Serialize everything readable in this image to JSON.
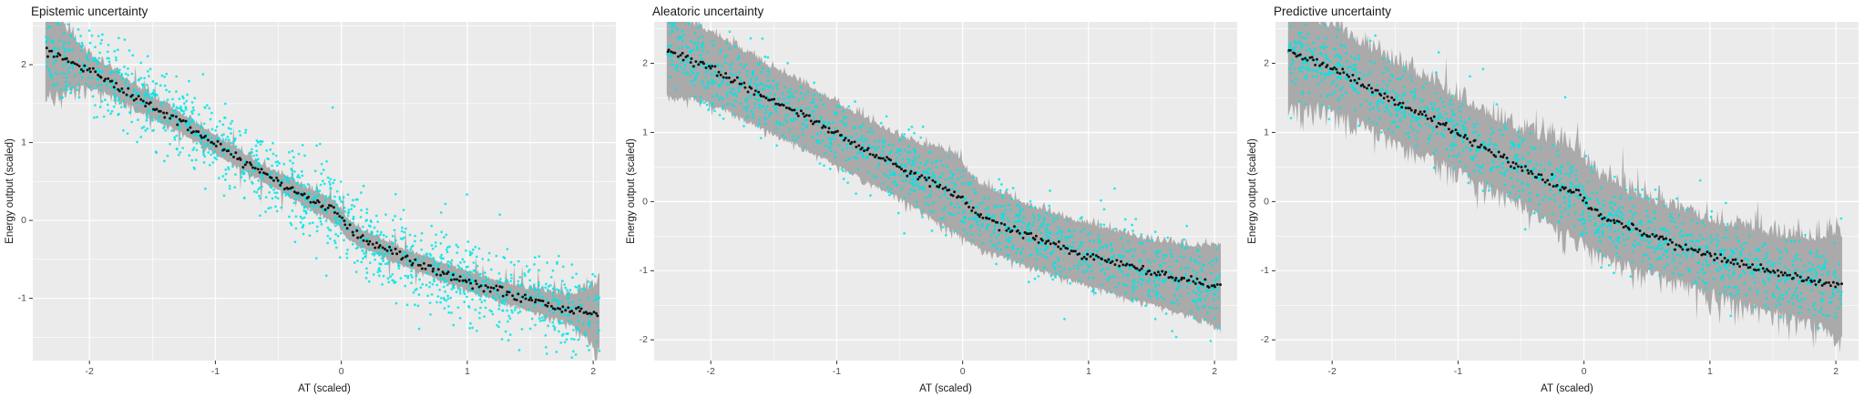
{
  "colors": {
    "panel_bg": "#EBEBEB",
    "grid": "#FFFFFF",
    "tick": "#333333",
    "tick_label": "#4D4D4D",
    "ribbon": "#A6A6A6",
    "scatter": "#00E5E5",
    "curve": "#111111",
    "title": "#1A1A1A"
  },
  "chart_data": [
    {
      "type": "scatter",
      "title": "Epistemic uncertainty",
      "xlabel": "AT (scaled)",
      "ylabel": "Energy output (scaled)",
      "xlim": [
        -2.45,
        2.18
      ],
      "ylim": [
        -1.8,
        2.55
      ],
      "x_ticks": [
        -2,
        -1,
        0,
        1,
        2
      ],
      "y_ticks": [
        -1,
        0,
        1,
        2
      ],
      "legend": "none",
      "grid": "on",
      "seed": 11,
      "curve": {
        "x": [
          -2.35,
          -2.1,
          -1.9,
          -1.7,
          -1.5,
          -1.3,
          -1.1,
          -0.9,
          -0.7,
          -0.5,
          -0.3,
          -0.15,
          -0.05,
          0.0,
          0.05,
          0.15,
          0.3,
          0.5,
          0.7,
          0.9,
          1.1,
          1.3,
          1.5,
          1.7,
          1.9,
          2.05
        ],
        "y": [
          2.18,
          2.0,
          1.85,
          1.65,
          1.45,
          1.28,
          1.08,
          0.88,
          0.68,
          0.5,
          0.32,
          0.2,
          0.12,
          0.02,
          -0.1,
          -0.22,
          -0.33,
          -0.48,
          -0.6,
          -0.72,
          -0.83,
          -0.93,
          -1.02,
          -1.1,
          -1.17,
          -1.23
        ]
      },
      "ribbon": {
        "x": [
          -2.35,
          -2.15,
          -2.0,
          -1.6,
          -1.0,
          -0.5,
          -0.1,
          0.1,
          0.5,
          1.0,
          1.5,
          1.8,
          1.95,
          2.1
        ],
        "hw": [
          0.5,
          0.3,
          0.17,
          0.12,
          0.1,
          0.09,
          0.12,
          0.1,
          0.09,
          0.1,
          0.12,
          0.15,
          0.25,
          0.45
        ],
        "jag": 0.35,
        "spike_p": 0.06,
        "spike_mag": 0.3
      },
      "scatter": {
        "n": 1400,
        "noise_sd": 0.27
      },
      "curve_dots": {
        "n": 270,
        "jitter": 0.03
      }
    },
    {
      "type": "scatter",
      "title": "Aleatoric uncertainty",
      "xlabel": "AT (scaled)",
      "ylabel": "Energy output (scaled)",
      "xlim": [
        -2.45,
        2.18
      ],
      "ylim": [
        -2.3,
        2.6
      ],
      "x_ticks": [
        -2,
        -1,
        0,
        1,
        2
      ],
      "y_ticks": [
        -2,
        -1,
        0,
        1,
        2
      ],
      "legend": "none",
      "grid": "on",
      "seed": 22,
      "curve": {
        "x": [
          -2.35,
          -2.1,
          -1.9,
          -1.7,
          -1.5,
          -1.3,
          -1.1,
          -0.9,
          -0.7,
          -0.5,
          -0.3,
          -0.15,
          -0.05,
          0.0,
          0.05,
          0.15,
          0.3,
          0.5,
          0.7,
          0.9,
          1.1,
          1.3,
          1.5,
          1.7,
          1.9,
          2.05
        ],
        "y": [
          2.18,
          2.0,
          1.85,
          1.65,
          1.45,
          1.28,
          1.08,
          0.88,
          0.68,
          0.5,
          0.32,
          0.2,
          0.12,
          0.02,
          -0.1,
          -0.22,
          -0.33,
          -0.48,
          -0.6,
          -0.72,
          -0.83,
          -0.93,
          -1.02,
          -1.1,
          -1.17,
          -1.23
        ]
      },
      "ribbon": {
        "x": [
          -2.35,
          -2.1,
          -1.5,
          -1.0,
          -0.5,
          -0.05,
          0.1,
          0.5,
          1.0,
          1.5,
          1.9,
          2.1
        ],
        "hw": [
          0.6,
          0.5,
          0.45,
          0.43,
          0.42,
          0.54,
          0.45,
          0.42,
          0.42,
          0.44,
          0.5,
          0.62
        ],
        "jag": 0.12,
        "spike_p": 0.03,
        "spike_mag": 0.15
      },
      "scatter": {
        "n": 1400,
        "noise_sd": 0.27
      },
      "curve_dots": {
        "n": 270,
        "jitter": 0.03
      }
    },
    {
      "type": "scatter",
      "title": "Predictive uncertainty",
      "xlabel": "AT (scaled)",
      "ylabel": "Energy output (scaled)",
      "xlim": [
        -2.45,
        2.18
      ],
      "ylim": [
        -2.3,
        2.6
      ],
      "x_ticks": [
        -2,
        -1,
        0,
        1,
        2
      ],
      "y_ticks": [
        -2,
        -1,
        0,
        1,
        2
      ],
      "legend": "none",
      "grid": "on",
      "seed": 33,
      "curve": {
        "x": [
          -2.35,
          -2.1,
          -1.9,
          -1.7,
          -1.5,
          -1.3,
          -1.1,
          -0.9,
          -0.7,
          -0.5,
          -0.3,
          -0.15,
          -0.05,
          0.0,
          0.05,
          0.15,
          0.3,
          0.5,
          0.7,
          0.9,
          1.1,
          1.3,
          1.5,
          1.7,
          1.9,
          2.05
        ],
        "y": [
          2.18,
          2.0,
          1.85,
          1.65,
          1.45,
          1.28,
          1.08,
          0.88,
          0.68,
          0.5,
          0.32,
          0.2,
          0.12,
          0.02,
          -0.1,
          -0.22,
          -0.33,
          -0.48,
          -0.6,
          -0.72,
          -0.83,
          -0.93,
          -1.02,
          -1.1,
          -1.17,
          -1.23
        ]
      },
      "ribbon": {
        "x": [
          -2.35,
          -2.1,
          -1.5,
          -1.0,
          -0.5,
          -0.05,
          0.1,
          0.5,
          1.0,
          1.5,
          1.9,
          2.1
        ],
        "hw": [
          0.75,
          0.55,
          0.5,
          0.47,
          0.46,
          0.58,
          0.5,
          0.46,
          0.47,
          0.5,
          0.58,
          0.75
        ],
        "jag": 0.28,
        "spike_p": 0.09,
        "spike_mag": 0.3
      },
      "scatter": {
        "n": 1400,
        "noise_sd": 0.27
      },
      "curve_dots": {
        "n": 270,
        "jitter": 0.03
      }
    }
  ]
}
